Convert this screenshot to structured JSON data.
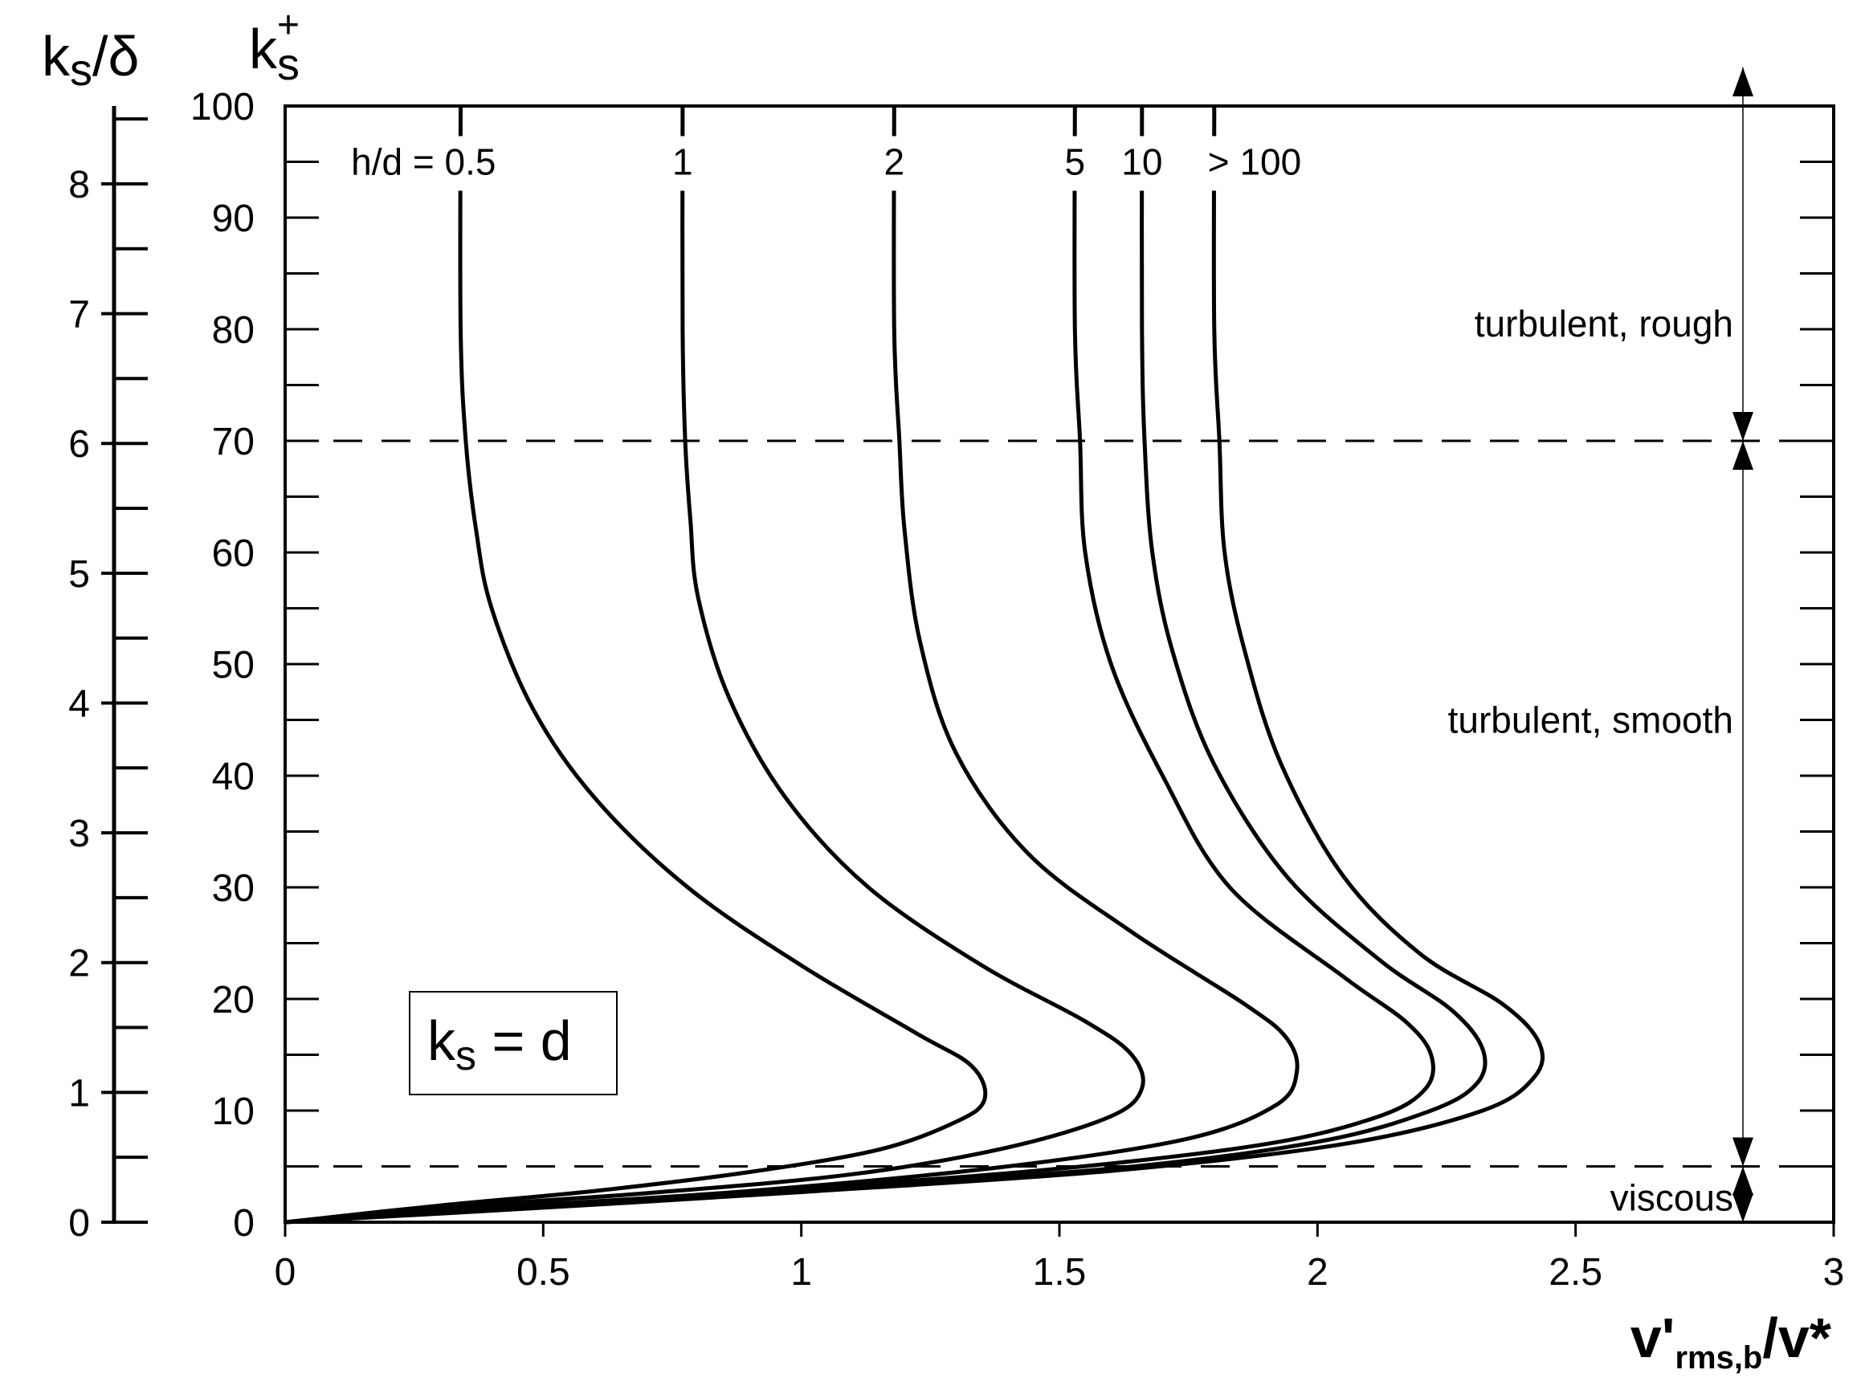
{
  "chart_data": {
    "type": "line",
    "title": "",
    "xlabel": {
      "base": "v'",
      "sub": "rms,b",
      "tail": "/v*"
    },
    "ylabel": {
      "base": "k",
      "sub": "s",
      "sup": "+"
    },
    "y2label": {
      "base": "k",
      "sub": "s",
      "tail": "/δ"
    },
    "xlim": [
      0,
      3
    ],
    "ylim": [
      0,
      100
    ],
    "y2lim": [
      0,
      8.6
    ],
    "grid": false,
    "x_ticks": [
      "0",
      "0.5",
      "1",
      "1.5",
      "2",
      "2.5",
      "3"
    ],
    "y_ticks": [
      "0",
      "10",
      "20",
      "30",
      "40",
      "50",
      "60",
      "70",
      "80",
      "90",
      "100"
    ],
    "y2_ticks": [
      "0",
      "1",
      "2",
      "3",
      "4",
      "5",
      "6",
      "7",
      "8"
    ],
    "annotation_box": {
      "base": "k",
      "sub": "s",
      "tail": " = d"
    },
    "thresholds": [
      70,
      5
    ],
    "regions": [
      {
        "label": "turbulent, rough",
        "range": [
          70,
          100
        ]
      },
      {
        "label": "turbulent, smooth",
        "range": [
          5,
          70
        ]
      },
      {
        "label": "viscous",
        "range": [
          0,
          5
        ]
      }
    ],
    "series": [
      {
        "name": "h/d = 0.5",
        "x": [
          0,
          0.3,
          0.6,
          0.9,
          1.15,
          1.3,
          1.355,
          1.33,
          1.22,
          1.0,
          0.78,
          0.6,
          0.48,
          0.4,
          0.37,
          0.35,
          0.34,
          0.34
        ],
        "y": [
          0,
          1.5,
          2.8,
          4.5,
          6.5,
          9,
          11,
          14,
          17,
          23,
          30,
          38,
          46,
          55,
          62,
          70,
          80,
          100
        ]
      },
      {
        "name": "1",
        "x": [
          0,
          0.3,
          0.7,
          1.1,
          1.4,
          1.6,
          1.66,
          1.64,
          1.55,
          1.35,
          1.13,
          0.97,
          0.86,
          0.8,
          0.785,
          0.775,
          0.77,
          0.77
        ],
        "y": [
          0,
          1.3,
          2.6,
          4.3,
          6.7,
          9.5,
          12,
          15,
          18,
          23,
          30,
          38,
          47,
          56,
          63,
          70,
          80,
          100
        ]
      },
      {
        "name": "2",
        "x": [
          0,
          0.4,
          0.9,
          1.4,
          1.75,
          1.92,
          1.96,
          1.94,
          1.86,
          1.64,
          1.44,
          1.3,
          1.23,
          1.2,
          1.19,
          1.18,
          1.18
        ],
        "y": [
          0,
          1.3,
          2.8,
          5,
          7.5,
          10.5,
          13.5,
          16.5,
          19.5,
          26,
          33,
          42,
          52,
          62,
          70,
          80,
          100
        ]
      },
      {
        "name": "5",
        "x": [
          0,
          0.5,
          1.0,
          1.5,
          1.9,
          2.12,
          2.21,
          2.22,
          2.17,
          2.05,
          1.83,
          1.7,
          1.6,
          1.55,
          1.54,
          1.53,
          1.53
        ],
        "y": [
          0,
          1.5,
          3,
          4.8,
          7,
          9.5,
          12,
          15,
          18,
          22,
          30,
          40,
          50,
          60,
          70,
          80,
          100
        ]
      },
      {
        "name": "10",
        "x": [
          0,
          0.5,
          1.0,
          1.6,
          2.0,
          2.22,
          2.31,
          2.32,
          2.26,
          2.12,
          1.94,
          1.8,
          1.72,
          1.68,
          1.665,
          1.66,
          1.66
        ],
        "y": [
          0,
          1.4,
          2.9,
          4.8,
          7.2,
          10,
          12.5,
          15.5,
          19,
          23.5,
          31,
          41,
          51,
          60,
          70,
          80,
          100
        ]
      },
      {
        "name": "> 100",
        "x": [
          0,
          0.5,
          1.0,
          1.6,
          2.05,
          2.32,
          2.42,
          2.43,
          2.36,
          2.2,
          2.05,
          1.93,
          1.86,
          1.82,
          1.81,
          1.8,
          1.8
        ],
        "y": [
          0,
          1.3,
          2.7,
          4.6,
          7,
          10,
          13,
          16,
          19.5,
          24,
          31,
          41,
          51,
          60,
          70,
          80,
          100
        ]
      }
    ]
  }
}
